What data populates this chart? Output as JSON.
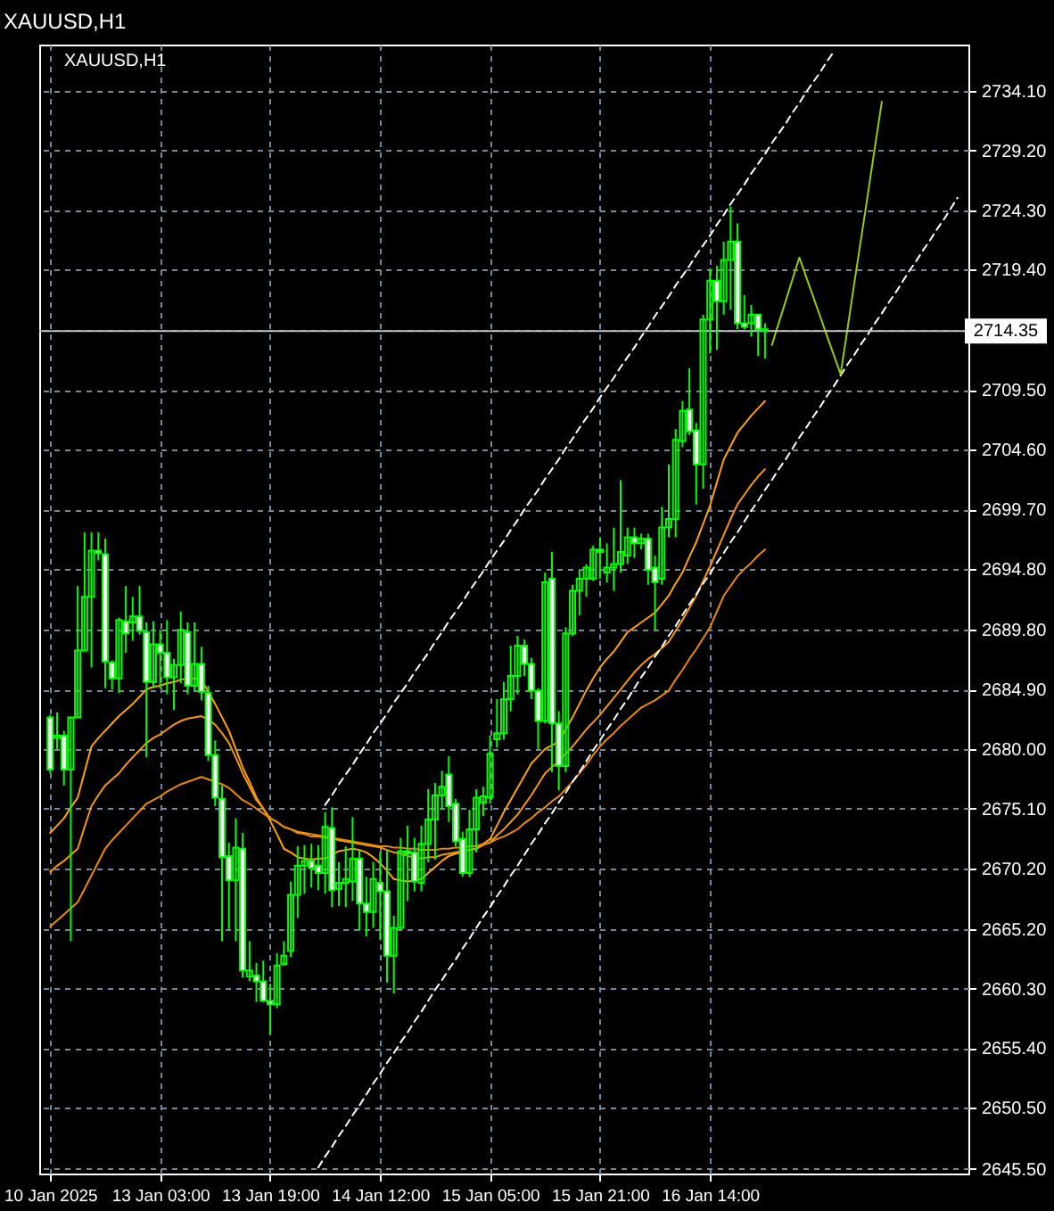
{
  "chart_data": {
    "type": "candlestick",
    "title": "XAUUSD,H1",
    "annotations": [
      "XAUUSD,H1"
    ],
    "color": "#00ff00",
    "categories": [
      "10 Jan 2025",
      null,
      null,
      null,
      null,
      null,
      null,
      null,
      null,
      null,
      null,
      null,
      null,
      null,
      null,
      null,
      "13 Jan 03:00",
      null,
      null,
      null,
      null,
      null,
      null,
      null,
      null,
      null,
      null,
      null,
      null,
      null,
      null,
      null,
      "13 Jan 19:00",
      null,
      null,
      null,
      null,
      null,
      null,
      null,
      null,
      null,
      null,
      null,
      null,
      null,
      null,
      null,
      "14 Jan 12:00",
      null,
      null,
      null,
      null,
      null,
      null,
      null,
      null,
      null,
      null,
      null,
      null,
      null,
      null,
      null,
      "15 Jan 05:00",
      null,
      null,
      null,
      null,
      null,
      null,
      null,
      null,
      null,
      null,
      null,
      null,
      null,
      null,
      null,
      "15 Jan 21:00",
      null,
      null,
      null,
      null,
      null,
      null,
      null,
      null,
      null,
      null,
      null,
      null,
      null,
      null,
      null,
      "16 Jan 14:00",
      null,
      null,
      null,
      null,
      null,
      null,
      null,
      null,
      null,
      null,
      null,
      null,
      null,
      null,
      null,
      null,
      null,
      null,
      null,
      null,
      null,
      null,
      null,
      null,
      null,
      null,
      null,
      null,
      null,
      null,
      null,
      null,
      null,
      null,
      null,
      null
    ],
    "ohlc": [
      [
        2682.6,
        2682.8,
        2678.0,
        2678.3
      ],
      [
        2680.9,
        2683.0,
        2680.0,
        2681.1
      ],
      [
        2681.1,
        2681.5,
        2677.0,
        2678.3
      ],
      [
        2678.3,
        2682.6,
        2664.2,
        2682.6
      ],
      [
        2682.6,
        2693.4,
        2682.6,
        2688.1
      ],
      [
        2688.1,
        2697.8,
        2688.0,
        2692.5
      ],
      [
        2692.5,
        2697.8,
        2686.7,
        2696.3
      ],
      [
        2696.3,
        2697.8,
        2695.5,
        2696.1
      ],
      [
        2696.0,
        2697.3,
        2685.0,
        2687.2
      ],
      [
        2687.1,
        2687.3,
        2684.9,
        2685.8
      ],
      [
        2685.8,
        2690.8,
        2684.6,
        2690.6
      ],
      [
        2690.5,
        2693.4,
        2687.9,
        2689.5
      ],
      [
        2690.4,
        2692.5,
        2688.9,
        2690.9
      ],
      [
        2690.9,
        2693.4,
        2689.4,
        2689.7
      ],
      [
        2689.6,
        2690.4,
        2679.3,
        2685.5
      ],
      [
        2685.5,
        2690.5,
        2685.0,
        2688.6
      ],
      [
        2688.6,
        2689.8,
        2685.0,
        2687.9
      ],
      [
        2687.9,
        2690.6,
        2684.5,
        2685.9
      ],
      [
        2685.9,
        2687.4,
        2683.2,
        2686.9
      ],
      [
        2686.9,
        2691.3,
        2685.4,
        2689.8
      ],
      [
        2689.6,
        2690.4,
        2684.5,
        2685.2
      ],
      [
        2685.2,
        2690.4,
        2684.7,
        2687.0
      ],
      [
        2687.0,
        2688.4,
        2684.0,
        2684.7
      ],
      [
        2684.6,
        2685.2,
        2679.0,
        2679.5
      ],
      [
        2679.5,
        2680.7,
        2675.3,
        2676.0
      ],
      [
        2675.9,
        2677.0,
        2664.2,
        2671.1
      ],
      [
        2671.2,
        2672.3,
        2665.2,
        2669.2
      ],
      [
        2669.2,
        2674.3,
        2664.2,
        2671.9
      ],
      [
        2671.8,
        2673.1,
        2661.2,
        2661.8
      ],
      [
        2661.3,
        2664.2,
        2660.9,
        2661.8
      ],
      [
        2661.4,
        2662.4,
        2659.2,
        2660.9
      ],
      [
        2660.9,
        2662.6,
        2659.2,
        2659.3
      ],
      [
        2659.3,
        2660.7,
        2656.5,
        2659.0
      ],
      [
        2659.0,
        2663.2,
        2658.7,
        2662.2
      ],
      [
        2662.3,
        2664.2,
        2662.2,
        2663.0
      ],
      [
        2663.4,
        2669.1,
        2662.9,
        2668.0
      ],
      [
        2668.0,
        2672.0,
        2666.1,
        2670.4
      ],
      [
        2670.4,
        2672.1,
        2668.1,
        2670.8
      ],
      [
        2670.8,
        2672.2,
        2668.6,
        2670.2
      ],
      [
        2670.4,
        2672.1,
        2668.4,
        2669.8
      ],
      [
        2669.8,
        2674.8,
        2668.1,
        2673.6
      ],
      [
        2673.5,
        2675.2,
        2667.0,
        2668.4
      ],
      [
        2668.5,
        2670.7,
        2667.1,
        2669.0
      ],
      [
        2669.0,
        2672.0,
        2667.0,
        2669.3
      ],
      [
        2669.1,
        2674.4,
        2667.5,
        2671.0
      ],
      [
        2671.0,
        2671.7,
        2665.1,
        2667.3
      ],
      [
        2667.3,
        2669.5,
        2664.6,
        2666.6
      ],
      [
        2666.6,
        2670.7,
        2665.3,
        2669.3
      ],
      [
        2669.0,
        2671.5,
        2664.3,
        2668.3
      ],
      [
        2668.3,
        2671.7,
        2660.8,
        2663.0
      ],
      [
        2663.0,
        2666.3,
        2659.9,
        2665.3
      ],
      [
        2665.3,
        2672.7,
        2665.1,
        2671.6
      ],
      [
        2671.6,
        2673.7,
        2667.5,
        2671.4
      ],
      [
        2671.5,
        2672.7,
        2668.3,
        2669.1
      ],
      [
        2669.0,
        2673.7,
        2668.3,
        2672.2
      ],
      [
        2672.2,
        2676.7,
        2670.7,
        2674.2
      ],
      [
        2674.2,
        2677.2,
        2670.9,
        2676.2
      ],
      [
        2676.2,
        2678.2,
        2675.0,
        2676.9
      ],
      [
        2677.9,
        2679.4,
        2674.0,
        2675.3
      ],
      [
        2675.5,
        2675.9,
        2672.0,
        2672.4
      ],
      [
        2672.6,
        2673.2,
        2669.5,
        2669.8
      ],
      [
        2669.8,
        2675.0,
        2669.5,
        2673.4
      ],
      [
        2673.4,
        2676.7,
        2671.5,
        2676.0
      ],
      [
        2675.6,
        2676.9,
        2674.5,
        2676.1
      ],
      [
        2676.0,
        2681.1,
        2675.5,
        2679.6
      ],
      [
        2680.8,
        2684.1,
        2680.1,
        2681.3
      ],
      [
        2681.3,
        2685.5,
        2680.8,
        2684.1
      ],
      [
        2684.1,
        2688.5,
        2683.1,
        2686.0
      ],
      [
        2686.0,
        2689.3,
        2684.5,
        2688.5
      ],
      [
        2688.5,
        2689.0,
        2686.0,
        2687.0
      ],
      [
        2687.0,
        2687.5,
        2684.1,
        2684.8
      ],
      [
        2684.8,
        2685.0,
        2680.0,
        2682.3
      ],
      [
        2682.3,
        2694.5,
        2682.1,
        2693.7
      ],
      [
        2694.0,
        2696.2,
        2678.1,
        2682.1
      ],
      [
        2682.1,
        2683.1,
        2676.6,
        2678.6
      ],
      [
        2678.6,
        2690.0,
        2678.1,
        2689.5
      ],
      [
        2689.5,
        2693.5,
        2689.3,
        2693.0
      ],
      [
        2693.0,
        2694.7,
        2691.0,
        2694.0
      ],
      [
        2694.0,
        2695.2,
        2692.5,
        2694.9
      ],
      [
        2694.0,
        2696.7,
        2693.8,
        2696.4
      ],
      [
        2696.4,
        2697.4,
        2694.0,
        2696.2
      ],
      [
        2694.5,
        2696.9,
        2693.7,
        2694.9
      ],
      [
        2694.9,
        2698.2,
        2693.0,
        2695.2
      ],
      [
        2695.2,
        2702.1,
        2694.5,
        2696.2
      ],
      [
        2695.9,
        2698.2,
        2695.2,
        2697.4
      ],
      [
        2697.4,
        2698.2,
        2695.7,
        2696.9
      ],
      [
        2696.9,
        2697.7,
        2696.4,
        2697.3
      ],
      [
        2697.3,
        2697.7,
        2693.5,
        2694.7
      ],
      [
        2694.9,
        2695.9,
        2689.8,
        2693.7
      ],
      [
        2694.0,
        2699.9,
        2693.5,
        2698.2
      ],
      [
        2698.2,
        2703.4,
        2697.4,
        2698.9
      ],
      [
        2698.9,
        2706.3,
        2697.4,
        2705.4
      ],
      [
        2705.3,
        2708.6,
        2704.8,
        2707.8
      ],
      [
        2707.9,
        2711.3,
        2705.8,
        2706.1
      ],
      [
        2706.2,
        2706.8,
        2700.1,
        2703.4
      ],
      [
        2703.4,
        2715.7,
        2701.4,
        2715.3
      ],
      [
        2715.3,
        2719.5,
        2712.5,
        2718.5
      ],
      [
        2718.5,
        2719.7,
        2712.8,
        2716.8
      ],
      [
        2716.8,
        2721.7,
        2715.7,
        2720.2
      ],
      [
        2720.2,
        2724.6,
        2716.1,
        2721.7
      ],
      [
        2721.7,
        2723.2,
        2714.5,
        2715.0
      ],
      [
        2715.0,
        2717.3,
        2714.5,
        2714.7
      ],
      [
        2715.0,
        2716.5,
        2713.9,
        2715.7
      ],
      [
        2715.7,
        2715.7,
        2712.3,
        2714.5
      ],
      [
        2714.5,
        2715.0,
        2712.1,
        2714.35
      ],
      null,
      null,
      null,
      null,
      null,
      null,
      null,
      null,
      null,
      null,
      null,
      null,
      null,
      null,
      null,
      null,
      null,
      null,
      null,
      null,
      null,
      null,
      null,
      null,
      null,
      null,
      null,
      null
    ],
    "series": [
      {
        "type": "line",
        "color": "#ffa500",
        "values": [
          2673.1,
          2673.7,
          2674.3,
          2675.2,
          2676.0,
          2678.1,
          2680.2,
          2680.9,
          2681.5,
          2682.1,
          2682.7,
          2683.2,
          2683.7,
          2684.3,
          2684.9,
          2685.1,
          2685.2,
          2685.4,
          2685.5,
          2685.7,
          2685.8,
          2685.8,
          2685.7,
          2684.7,
          2683.7,
          2682.6,
          2681.5,
          2680.0,
          2678.5,
          2677.3,
          2676.0,
          2675.1,
          2674.1,
          2673.0,
          2671.8,
          2671.5,
          2671.1,
          2671.0,
          2670.9,
          2671.0,
          2671.0,
          2671.3,
          2671.6,
          2671.7,
          2671.8,
          2671.7,
          2671.5,
          2671.1,
          2670.6,
          2670.0,
          2669.3,
          2669.2,
          2669.1,
          2669.2,
          2669.3,
          2669.8,
          2670.3,
          2670.8,
          2671.2,
          2671.4,
          2671.5,
          2671.7,
          2671.8,
          2672.2,
          2672.6,
          2673.7,
          2674.8,
          2675.8,
          2676.8,
          2677.8,
          2678.8,
          2679.4,
          2680.0,
          2680.3,
          2680.6,
          2681.6,
          2682.6,
          2683.7,
          2684.8,
          2685.8,
          2686.7,
          2687.4,
          2688.0,
          2688.8,
          2689.6,
          2690.0,
          2690.4,
          2690.8,
          2691.2,
          2691.9,
          2692.6,
          2693.6,
          2694.5,
          2695.8,
          2697.0,
          2698.5,
          2700.0,
          2701.9,
          2703.8,
          2704.9,
          2706.0,
          2706.7,
          2707.4,
          2708.0,
          2708.6,
          null,
          null,
          null,
          null,
          null,
          null,
          null,
          null,
          null,
          null,
          null,
          null,
          null,
          null,
          null,
          null,
          null,
          null,
          null,
          null,
          null,
          null,
          null,
          null,
          null,
          null,
          null,
          null
        ]
      },
      {
        "type": "line",
        "color": "#f59a00",
        "values": [
          2669.9,
          2670.4,
          2670.8,
          2671.3,
          2671.8,
          2673.6,
          2675.3,
          2676.2,
          2677.0,
          2677.5,
          2678.0,
          2678.7,
          2679.3,
          2679.9,
          2680.5,
          2680.9,
          2681.2,
          2681.6,
          2682.0,
          2682.3,
          2682.5,
          2682.6,
          2682.7,
          2682.4,
          2682.0,
          2681.3,
          2680.5,
          2679.3,
          2678.0,
          2676.9,
          2675.8,
          2675.1,
          2674.3,
          2674.0,
          2673.6,
          2673.4,
          2673.2,
          2673.1,
          2673.0,
          2672.9,
          2672.8,
          2672.7,
          2672.5,
          2672.4,
          2672.3,
          2672.2,
          2672.1,
          2672.0,
          2671.9,
          2671.7,
          2671.5,
          2671.4,
          2671.2,
          2671.1,
          2671.0,
          2671.1,
          2671.1,
          2671.3,
          2671.4,
          2671.5,
          2671.6,
          2671.7,
          2671.8,
          2672.1,
          2672.3,
          2672.9,
          2673.4,
          2674.0,
          2674.6,
          2675.4,
          2676.2,
          2677.1,
          2678.0,
          2678.5,
          2679.0,
          2679.6,
          2680.2,
          2680.9,
          2681.6,
          2682.2,
          2682.8,
          2683.5,
          2684.2,
          2684.9,
          2685.6,
          2686.3,
          2686.9,
          2687.4,
          2687.8,
          2688.3,
          2688.8,
          2689.7,
          2690.6,
          2691.6,
          2692.6,
          2693.8,
          2695.0,
          2696.3,
          2697.6,
          2698.9,
          2700.1,
          2700.9,
          2701.7,
          2702.4,
          2703.0,
          null,
          null,
          null,
          null,
          null,
          null,
          null,
          null,
          null,
          null,
          null,
          null,
          null,
          null,
          null,
          null,
          null,
          null,
          null,
          null,
          null,
          null,
          null,
          null,
          null,
          null,
          null,
          null
        ]
      },
      {
        "type": "line",
        "color": "#e88b00",
        "values": [
          2665.4,
          2665.9,
          2666.4,
          2666.9,
          2667.4,
          2668.5,
          2669.6,
          2670.7,
          2671.8,
          2672.5,
          2673.1,
          2673.7,
          2674.3,
          2674.9,
          2675.5,
          2675.8,
          2676.1,
          2676.5,
          2676.8,
          2677.1,
          2677.3,
          2677.5,
          2677.7,
          2677.5,
          2677.3,
          2677.1,
          2676.8,
          2676.3,
          2675.8,
          2675.5,
          2675.1,
          2674.7,
          2674.3,
          2674.0,
          2673.6,
          2673.4,
          2673.1,
          2673.0,
          2672.8,
          2672.8,
          2672.7,
          2672.7,
          2672.6,
          2672.5,
          2672.4,
          2672.3,
          2672.2,
          2672.1,
          2672.0,
          2672.0,
          2671.9,
          2671.9,
          2671.8,
          2671.8,
          2671.7,
          2671.7,
          2671.7,
          2671.8,
          2671.8,
          2671.9,
          2671.9,
          2672.0,
          2672.0,
          2672.2,
          2672.3,
          2672.6,
          2672.8,
          2673.1,
          2673.4,
          2673.9,
          2674.3,
          2674.8,
          2675.2,
          2675.7,
          2676.1,
          2676.7,
          2677.3,
          2678.0,
          2678.7,
          2679.5,
          2680.2,
          2680.8,
          2681.3,
          2681.9,
          2682.4,
          2682.9,
          2683.4,
          2683.7,
          2684.0,
          2684.4,
          2684.8,
          2685.7,
          2686.5,
          2687.4,
          2688.2,
          2689.1,
          2690.0,
          2691.3,
          2692.6,
          2693.4,
          2694.2,
          2694.8,
          2695.3,
          2695.9,
          2696.4,
          null,
          null,
          null,
          null,
          null,
          null,
          null,
          null,
          null,
          null,
          null,
          null,
          null,
          null,
          null,
          null,
          null,
          null,
          null,
          null,
          null,
          null,
          null,
          null,
          null,
          null,
          null,
          null
        ]
      },
      {
        "type": "line",
        "color": "#ffffff",
        "line_style": "dashed",
        "values": [
          null,
          null,
          null,
          null,
          null,
          null,
          null,
          null,
          null,
          null,
          null,
          null,
          null,
          null,
          null,
          null,
          null,
          null,
          null,
          null,
          null,
          null,
          null,
          null,
          null,
          null,
          null,
          null,
          null,
          null,
          null,
          null,
          null,
          null,
          null,
          null,
          null,
          null,
          null,
          null,
          2675.4,
          2676.2,
          2677.1,
          2677.9,
          2678.7,
          2679.6,
          2680.4,
          2681.3,
          2682.1,
          2682.9,
          2683.8,
          2684.6,
          2685.4,
          2686.3,
          2687.1,
          2687.9,
          2688.8,
          2689.6,
          2690.5,
          2691.3,
          2692.1,
          2693.0,
          2693.8,
          2694.6,
          2695.5,
          2696.3,
          2697.1,
          2698.0,
          2698.8,
          2699.7,
          2700.5,
          2701.3,
          2702.2,
          2703.0,
          2703.8,
          2704.7,
          2705.5,
          2706.4,
          2707.2,
          2708.0,
          2708.9,
          2709.7,
          2710.5,
          2711.4,
          2712.2,
          2713.0,
          2713.9,
          2714.7,
          2715.6,
          2716.4,
          2717.2,
          2718.1,
          2718.9,
          2719.7,
          2720.6,
          2721.4,
          2722.2,
          2723.1,
          2723.9,
          2724.8,
          2725.6,
          2726.4,
          2727.3,
          2728.1,
          2728.9,
          2729.8,
          2730.6,
          2731.4,
          2732.3,
          2733.1,
          2734.0,
          2734.8,
          2735.6,
          2736.5,
          2737.3,
          null,
          null,
          null,
          null,
          null,
          null,
          null,
          null,
          null,
          null,
          null,
          null,
          null,
          null,
          null,
          null,
          null,
          null
        ]
      },
      {
        "type": "line",
        "color": "#ffffff",
        "line_style": "dashed",
        "values": [
          null,
          null,
          null,
          null,
          null,
          null,
          null,
          null,
          null,
          null,
          null,
          null,
          null,
          null,
          null,
          null,
          null,
          null,
          null,
          null,
          null,
          null,
          null,
          null,
          null,
          null,
          null,
          null,
          null,
          null,
          null,
          null,
          null,
          null,
          null,
          null,
          null,
          null,
          null,
          2645.6,
          2646.5,
          2647.3,
          2648.2,
          2649.0,
          2649.9,
          2650.7,
          2651.6,
          2652.5,
          2653.3,
          2654.2,
          2655.0,
          2655.9,
          2656.7,
          2657.6,
          2658.4,
          2659.3,
          2660.2,
          2661.0,
          2661.9,
          2662.7,
          2663.6,
          2664.4,
          2665.3,
          2666.2,
          2667.0,
          2667.9,
          2668.7,
          2669.6,
          2670.4,
          2671.3,
          2672.2,
          2673.0,
          2673.9,
          2674.7,
          2675.6,
          2676.4,
          2677.3,
          2678.1,
          2679.0,
          2679.9,
          2680.7,
          2681.6,
          2682.4,
          2683.3,
          2684.1,
          2685.0,
          2685.9,
          2686.7,
          2687.6,
          2688.4,
          2689.3,
          2690.1,
          2691.0,
          2691.9,
          2692.7,
          2693.6,
          2694.4,
          2695.3,
          2696.1,
          2697.0,
          2697.8,
          2698.7,
          2699.6,
          2700.4,
          2701.3,
          2702.1,
          2703.0,
          2703.8,
          2704.7,
          2705.6,
          2706.4,
          2707.3,
          2708.1,
          2709.0,
          2709.8,
          2710.7,
          2711.6,
          2712.4,
          2713.3,
          2714.1,
          2715.0,
          2715.8,
          2716.7,
          2717.5,
          2718.4,
          2719.3,
          2720.1,
          2721.0,
          2721.8,
          2722.7,
          2723.5,
          2724.4,
          2725.3
        ]
      },
      {
        "type": "line",
        "color": "#99cc00",
        "values": [
          null,
          null,
          null,
          null,
          null,
          null,
          null,
          null,
          null,
          null,
          null,
          null,
          null,
          null,
          null,
          null,
          null,
          null,
          null,
          null,
          null,
          null,
          null,
          null,
          null,
          null,
          null,
          null,
          null,
          null,
          null,
          null,
          null,
          null,
          null,
          null,
          null,
          null,
          null,
          null,
          null,
          null,
          null,
          null,
          null,
          null,
          null,
          null,
          null,
          null,
          null,
          null,
          null,
          null,
          null,
          null,
          null,
          null,
          null,
          null,
          null,
          null,
          null,
          null,
          null,
          null,
          null,
          null,
          null,
          null,
          null,
          null,
          null,
          null,
          null,
          null,
          null,
          null,
          null,
          null,
          null,
          null,
          null,
          null,
          null,
          null,
          null,
          null,
          null,
          null,
          null,
          null,
          null,
          null,
          null,
          null,
          null,
          null,
          null,
          null,
          null,
          null,
          null,
          null,
          null,
          2713.2,
          2715.0,
          2716.8,
          2718.6,
          2720.4,
          2718.8,
          2717.2,
          2715.6,
          2714.0,
          2712.4,
          2710.8,
          2714.5,
          2718.3,
          2722.0,
          2725.7,
          2729.5,
          2733.2,
          null,
          null,
          null,
          null,
          null,
          null,
          null,
          null,
          null,
          null,
          null
        ]
      }
    ],
    "ref_lines": [
      {
        "axis": "y",
        "value": 2714.35,
        "label": "2714.35",
        "color": "#c0c0c0"
      }
    ],
    "ylim": [
      2645.1,
      2737.9
    ],
    "yticks": [
      {
        "value": 2645.5,
        "label": "2645.50"
      },
      {
        "value": 2650.5,
        "label": "2650.50"
      },
      {
        "value": 2655.4,
        "label": "2655.40"
      },
      {
        "value": 2660.3,
        "label": "2660.30"
      },
      {
        "value": 2665.2,
        "label": "2665.20"
      },
      {
        "value": 2670.2,
        "label": "2670.20"
      },
      {
        "value": 2675.1,
        "label": "2675.10"
      },
      {
        "value": 2680.0,
        "label": "2680.00"
      },
      {
        "value": 2684.9,
        "label": "2684.90"
      },
      {
        "value": 2689.8,
        "label": "2689.80"
      },
      {
        "value": 2694.8,
        "label": "2694.80"
      },
      {
        "value": 2699.7,
        "label": "2699.70"
      },
      {
        "value": 2704.6,
        "label": "2704.60"
      },
      {
        "value": 2709.5,
        "label": "2709.50"
      },
      {
        "value": 2714.4,
        "label": null
      },
      {
        "value": 2719.4,
        "label": "2719.40"
      },
      {
        "value": 2724.3,
        "label": "2724.30"
      },
      {
        "value": 2729.2,
        "label": "2729.20"
      },
      {
        "value": 2734.1,
        "label": "2734.10"
      }
    ],
    "grid": true
  }
}
